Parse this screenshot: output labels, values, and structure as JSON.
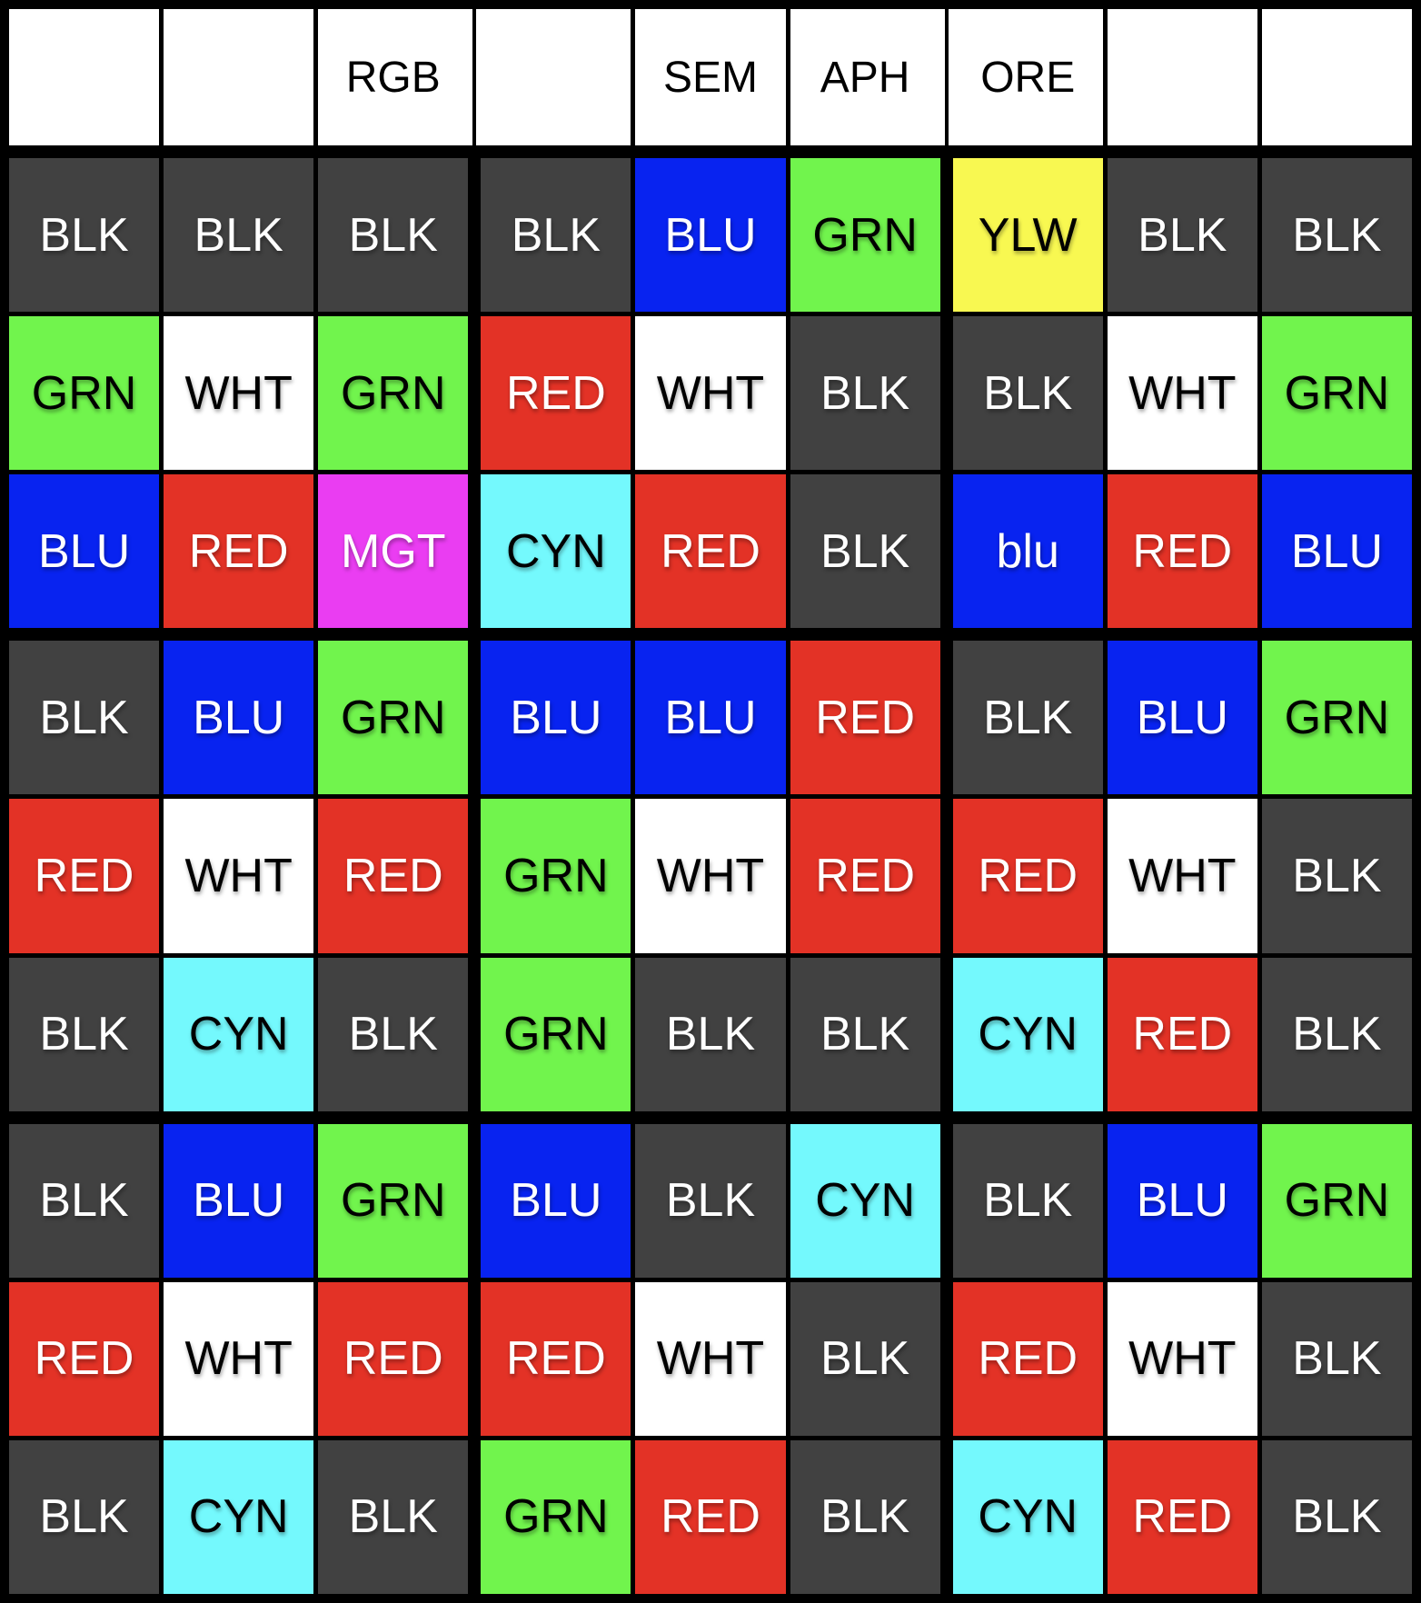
{
  "board": {
    "border_color": "#000000",
    "header_bg": "#ffffff"
  },
  "palette": {
    "BLK": {
      "bg": "#414141",
      "fg": "#ffffff"
    },
    "WHT": {
      "bg": "#ffffff",
      "fg": "#000000"
    },
    "RED": {
      "bg": "#e33226",
      "fg": "#ffffff"
    },
    "GRN": {
      "bg": "#71f44d",
      "fg": "#000000"
    },
    "BLU": {
      "bg": "#0823f0",
      "fg": "#ffffff"
    },
    "CYN": {
      "bg": "#74f9fd",
      "fg": "#000000"
    },
    "MGT": {
      "bg": "#ea3df2",
      "fg": "#ffffff"
    },
    "YLW": {
      "bg": "#f8f851",
      "fg": "#000000"
    }
  },
  "grid": {
    "header": [
      "",
      "",
      "RGB",
      "",
      "SEM",
      "APH",
      "ORE",
      "",
      ""
    ],
    "rows": [
      [
        "BLK",
        "BLK",
        "BLK",
        "BLK",
        "BLU",
        "GRN",
        "YLW",
        "BLK",
        "BLK"
      ],
      [
        "GRN",
        "WHT",
        "GRN",
        "RED",
        "WHT",
        "BLK",
        "BLK",
        "WHT",
        "GRN"
      ],
      [
        "BLU",
        "RED",
        "MGT",
        "CYN",
        "RED",
        "BLK",
        "blu",
        "RED",
        "BLU"
      ],
      [
        "BLK",
        "BLU",
        "GRN",
        "BLU",
        "BLU",
        "RED",
        "BLK",
        "BLU",
        "GRN"
      ],
      [
        "RED",
        "WHT",
        "RED",
        "GRN",
        "WHT",
        "RED",
        "RED",
        "WHT",
        "BLK"
      ],
      [
        "BLK",
        "CYN",
        "BLK",
        "GRN",
        "BLK",
        "BLK",
        "CYN",
        "RED",
        "BLK"
      ],
      [
        "BLK",
        "BLU",
        "GRN",
        "BLU",
        "BLK",
        "CYN",
        "BLK",
        "BLU",
        "GRN"
      ],
      [
        "RED",
        "WHT",
        "RED",
        "RED",
        "WHT",
        "BLK",
        "RED",
        "WHT",
        "BLK"
      ],
      [
        "BLK",
        "CYN",
        "BLK",
        "GRN",
        "RED",
        "BLK",
        "CYN",
        "RED",
        "BLK"
      ]
    ]
  }
}
